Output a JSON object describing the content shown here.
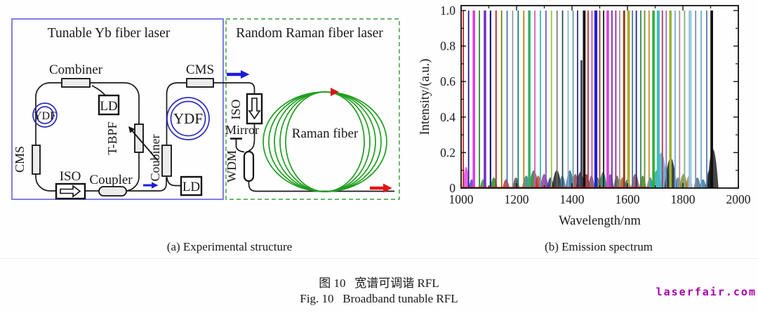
{
  "figure": {
    "panel_a": {
      "caption": "(a) Experimental structure",
      "box1_title": "Tunable Yb fiber laser",
      "box2_title": "Random Raman fiber laser",
      "labels": {
        "combiner": "Combiner",
        "ld1": "LD",
        "ydf1": "YDF",
        "cms1": "CMS",
        "iso1": "ISO",
        "coupler": "Coupler",
        "tbpf": "T-BPF",
        "coubiner": "Coubiner",
        "cms2": "CMS",
        "ydf2": "YDF",
        "ld2": "LD",
        "iso2": "ISO",
        "mirror": "Mirror",
        "wdm": "WDM",
        "raman_fiber": "Raman fiber"
      },
      "colors": {
        "box1_border": "#6a6ade",
        "box2_border": "#56ad56",
        "ydf_coil": "#2d2db8",
        "raman_coil": "#1f9e1f",
        "fiber": "#1a1a1a",
        "component_fill": "#ececec",
        "arrow_blue": "#1c1cd8",
        "arrow_red": "#e41414",
        "arrow_gradient_start": "#3c3cb4",
        "arrow_gradient_end": "#c02858"
      }
    },
    "panel_b": {
      "caption": "(b) Emission spectrum"
    },
    "caption_cn": "图 10   宽谱可调谐 RFL",
    "caption_en": "Fig. 10   Broadband tunable RFL",
    "watermark": "laserfair.com",
    "watermark_color": "#a800a8"
  },
  "chart_data": {
    "type": "line",
    "title": "",
    "xlabel": "Wavelength/nm",
    "ylabel": "Intensity/(a.u.)",
    "xlim": [
      1000,
      2000
    ],
    "ylim": [
      0,
      1.0
    ],
    "xticks": [
      1000,
      1200,
      1400,
      1600,
      1800,
      2000
    ],
    "xticks_minor": [
      1100,
      1300,
      1500,
      1700,
      1900
    ],
    "yticks": [
      0,
      0.2,
      0.4,
      0.6,
      0.8,
      1.0
    ],
    "yticks_minor": [
      0.1,
      0.3,
      0.5,
      0.7,
      0.9
    ],
    "grid": false,
    "legend": "none",
    "peaks_columns": [
      "wavelength_nm",
      "intensity",
      "width_px",
      "color"
    ],
    "peaks": [
      [
        1008,
        1.0,
        1.8,
        "#c81e1e"
      ],
      [
        1027,
        1.0,
        1.8,
        "#23238f"
      ],
      [
        1046,
        1.0,
        3.6,
        "#e23ce2"
      ],
      [
        1066,
        1.0,
        1.8,
        "#2e8b2e"
      ],
      [
        1086,
        1.0,
        3.6,
        "#7a2fc8"
      ],
      [
        1106,
        1.0,
        2.2,
        "#1d1d7e"
      ],
      [
        1126,
        1.0,
        1.8,
        "#b22222"
      ],
      [
        1146,
        1.0,
        1.8,
        "#7f7f00"
      ],
      [
        1166,
        1.0,
        1.8,
        "#4679b4"
      ],
      [
        1186,
        1.0,
        1.6,
        "#8f8f8f"
      ],
      [
        1206,
        1.0,
        1.8,
        "#0f7f7f"
      ],
      [
        1226,
        1.0,
        1.8,
        "#b8860b"
      ],
      [
        1246,
        1.0,
        3.6,
        "#38b06e"
      ],
      [
        1266,
        1.0,
        1.8,
        "#d45cc0"
      ],
      [
        1286,
        1.0,
        1.8,
        "#2ebcbc"
      ],
      [
        1306,
        1.0,
        1.8,
        "#6957ce"
      ],
      [
        1326,
        1.0,
        1.8,
        "#93c83c"
      ],
      [
        1346,
        1.0,
        1.6,
        "#6e6e6e"
      ],
      [
        1366,
        1.0,
        1.8,
        "#2f4f4f"
      ],
      [
        1386,
        1.0,
        1.8,
        "#8fb4d6"
      ],
      [
        1404,
        1.0,
        1.8,
        "#5f9ea0"
      ],
      [
        1420,
        1.0,
        1.8,
        "#2c2c80"
      ],
      [
        1434,
        0.72,
        2.6,
        "#39395f"
      ],
      [
        1444,
        1.0,
        3.8,
        "#111111"
      ],
      [
        1458,
        1.0,
        1.8,
        "#d42222"
      ],
      [
        1472,
        1.0,
        1.8,
        "#bb46bb"
      ],
      [
        1486,
        1.0,
        4.2,
        "#2222cc"
      ],
      [
        1500,
        1.0,
        1.8,
        "#b03030"
      ],
      [
        1514,
        1.0,
        1.8,
        "#1a1a1a"
      ],
      [
        1529,
        1.0,
        3.6,
        "#e23ce2"
      ],
      [
        1544,
        1.0,
        1.8,
        "#6a2c9e"
      ],
      [
        1558,
        1.0,
        1.8,
        "#a122a1"
      ],
      [
        1572,
        1.0,
        1.8,
        "#c4848e"
      ],
      [
        1588,
        1.0,
        3.0,
        "#8b4513"
      ],
      [
        1604,
        1.0,
        3.8,
        "#b4aa2a"
      ],
      [
        1618,
        1.0,
        1.8,
        "#4679b4"
      ],
      [
        1632,
        1.0,
        1.8,
        "#23238f"
      ],
      [
        1648,
        1.0,
        1.8,
        "#2e8b57"
      ],
      [
        1662,
        1.0,
        1.8,
        "#6b8e23"
      ],
      [
        1678,
        1.0,
        1.8,
        "#bd8d3e"
      ],
      [
        1694,
        1.0,
        3.6,
        "#32b032"
      ],
      [
        1711,
        1.0,
        4.2,
        "#3fbdbd"
      ],
      [
        1726,
        1.0,
        1.8,
        "#c03050"
      ],
      [
        1740,
        1.0,
        1.8,
        "#8f6fd0"
      ],
      [
        1755,
        1.0,
        3.6,
        "#9fb32e"
      ],
      [
        1772,
        1.0,
        1.8,
        "#6fb0d8"
      ],
      [
        1788,
        1.0,
        1.8,
        "#b09090"
      ],
      [
        1806,
        1.0,
        1.8,
        "#7fb07f"
      ],
      [
        1826,
        1.0,
        4.4,
        "#9cc6e0"
      ],
      [
        1846,
        1.0,
        1.8,
        "#7f93a3"
      ],
      [
        1866,
        1.0,
        1.8,
        "#6faad2"
      ],
      [
        1886,
        1.0,
        1.8,
        "#4f82b2"
      ],
      [
        1904,
        1.0,
        3.8,
        "#111111"
      ]
    ],
    "bumps_columns": [
      "wavelength_nm",
      "intensity",
      "half_width_nm_px",
      "color"
    ],
    "bumps": [
      [
        1018,
        0.12,
        5,
        "#e23ce2"
      ],
      [
        1038,
        0.05,
        4,
        "#3a3ac0"
      ],
      [
        1080,
        0.05,
        5,
        "#2e8b2e"
      ],
      [
        1118,
        0.06,
        5,
        "#118811"
      ],
      [
        1162,
        0.05,
        5,
        "#cc2222"
      ],
      [
        1198,
        0.06,
        5,
        "#444444"
      ],
      [
        1235,
        0.07,
        6,
        "#1f7f7f"
      ],
      [
        1262,
        0.1,
        7,
        "#2e6e2e"
      ],
      [
        1278,
        0.07,
        5,
        "#cc3333"
      ],
      [
        1300,
        0.08,
        6,
        "#8f2f8f"
      ],
      [
        1322,
        0.06,
        5,
        "#23238f"
      ],
      [
        1345,
        0.1,
        7,
        "#111111"
      ],
      [
        1365,
        0.07,
        5,
        "#336699"
      ],
      [
        1392,
        0.1,
        6,
        "#1f5f8f"
      ],
      [
        1412,
        0.08,
        5,
        "#993333"
      ],
      [
        1430,
        0.09,
        6,
        "#222222"
      ],
      [
        1452,
        0.08,
        5,
        "#7f2222"
      ],
      [
        1470,
        0.07,
        5,
        "#555555"
      ],
      [
        1492,
        0.06,
        5,
        "#1f7f55"
      ],
      [
        1512,
        0.09,
        6,
        "#117755"
      ],
      [
        1538,
        0.08,
        5,
        "#663399"
      ],
      [
        1562,
        0.07,
        5,
        "#2f6f2f"
      ],
      [
        1582,
        0.06,
        5,
        "#aa5522"
      ],
      [
        1600,
        0.05,
        5,
        "#225588"
      ],
      [
        1628,
        0.08,
        6,
        "#884444"
      ],
      [
        1655,
        0.07,
        5,
        "#447722"
      ],
      [
        1682,
        0.06,
        5,
        "#0088aa"
      ],
      [
        1705,
        0.1,
        7,
        "#2f9e9e"
      ],
      [
        1722,
        0.2,
        9,
        "#45b0cc"
      ],
      [
        1738,
        0.12,
        7,
        "#5abccc"
      ],
      [
        1756,
        0.17,
        9,
        "#151515"
      ],
      [
        1782,
        0.06,
        5,
        "#557799"
      ],
      [
        1802,
        0.08,
        6,
        "#778822"
      ],
      [
        1822,
        0.07,
        5,
        "#aa7744"
      ],
      [
        1852,
        0.06,
        5,
        "#446688"
      ],
      [
        1872,
        0.05,
        5,
        "#2f6f9f"
      ],
      [
        1896,
        0.1,
        6,
        "#333333"
      ],
      [
        1908,
        0.22,
        8,
        "#151515"
      ]
    ],
    "baseline_trace": {
      "color": "#cc1111",
      "from_nm": 1000,
      "to_nm": 1680,
      "level": 0.005
    }
  }
}
